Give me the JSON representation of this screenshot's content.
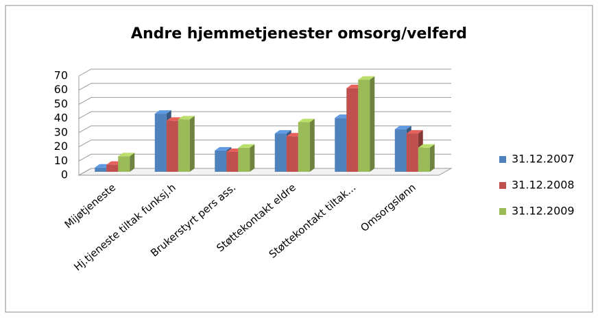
{
  "chart_data": {
    "type": "bar3d",
    "title": "Andre hjemmetjenester omsorg/velferd",
    "categories": [
      "Mijøtjeneste",
      "Hj.tjeneste tiltak funksj.h",
      "Brukerstyrt pers ass.",
      "Støttekontakt eldre",
      "Støttekontakt tiltak...",
      "Omsorgslønn"
    ],
    "series": [
      {
        "name": "31.12.2007",
        "color": "#4f81bd",
        "values": [
          3,
          41,
          15,
          27,
          38,
          30
        ]
      },
      {
        "name": "31.12.2008",
        "color": "#c0504d",
        "values": [
          5,
          36,
          14,
          25,
          59,
          27
        ]
      },
      {
        "name": "31.12.2009",
        "color": "#9bbb59",
        "values": [
          11,
          37,
          17,
          35,
          65,
          17
        ]
      }
    ],
    "ylim": [
      0,
      70
    ],
    "yticks": [
      0,
      10,
      20,
      30,
      40,
      50,
      60,
      70
    ],
    "grid": true,
    "legend": "right"
  }
}
